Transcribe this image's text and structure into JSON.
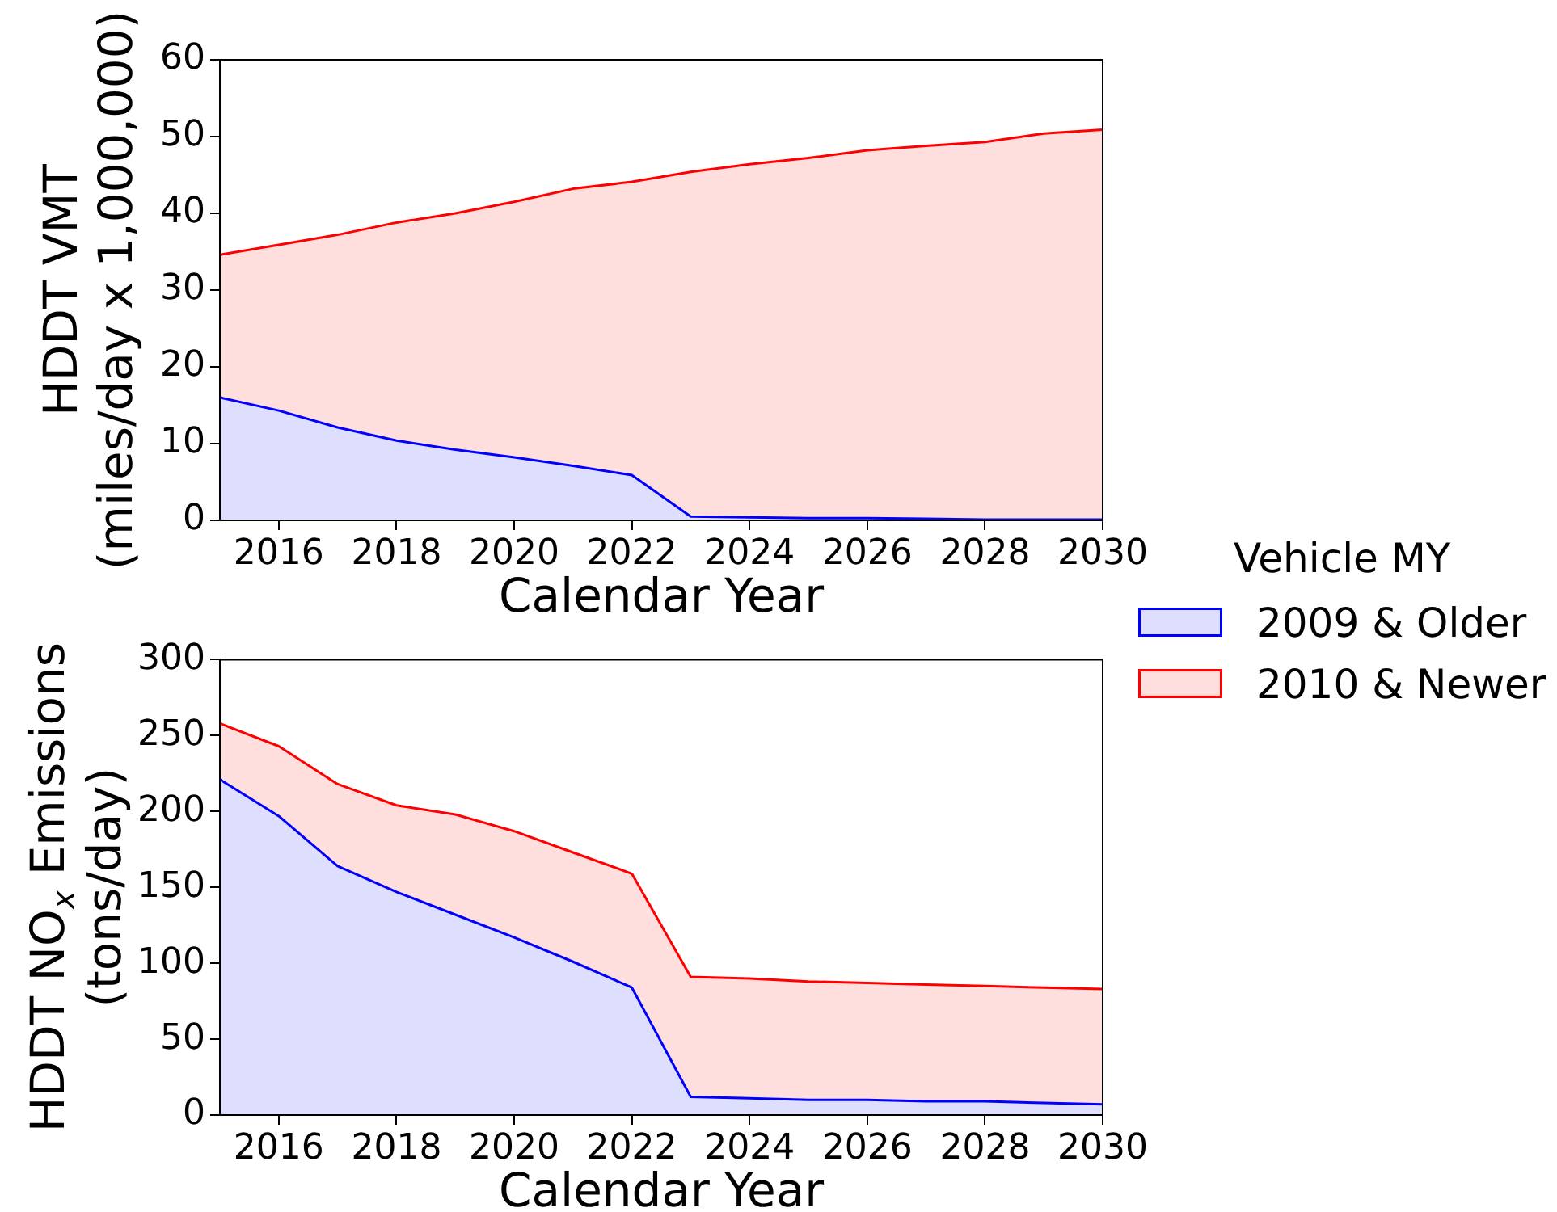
{
  "chart_data": [
    {
      "type": "area",
      "stacked": true,
      "xlabel": "Calendar Year",
      "ylabel": "HDDT VMT\n(miles/day x 1,000,000)",
      "legend": "right",
      "legend_title": "Vehicle MY",
      "x": [
        2015,
        2016,
        2017,
        2018,
        2019,
        2020,
        2021,
        2022,
        2023,
        2024,
        2025,
        2026,
        2027,
        2028,
        2029,
        2030
      ],
      "series": [
        {
          "name": "2009 & Older",
          "color": "#0000ff",
          "values": [
            16.0,
            14.3,
            12.1,
            10.4,
            9.2,
            8.2,
            7.1,
            5.9,
            0.5,
            0.4,
            0.3,
            0.3,
            0.2,
            0.1,
            0.1,
            0.1
          ]
        },
        {
          "name": "2010 & Newer",
          "color": "#ff0000",
          "values": [
            18.6,
            21.6,
            25.1,
            28.4,
            30.8,
            33.3,
            36.1,
            38.2,
            44.9,
            46.0,
            46.9,
            47.9,
            48.6,
            49.2,
            50.3,
            50.8
          ]
        }
      ],
      "xlim": [
        2015,
        2030
      ],
      "xticks": [
        2016,
        2018,
        2020,
        2022,
        2024,
        2026,
        2028,
        2030
      ],
      "ylim": [
        0,
        60
      ],
      "yticks": [
        0,
        10,
        20,
        30,
        40,
        50,
        60
      ]
    },
    {
      "type": "area",
      "stacked": true,
      "xlabel": "Calendar Year",
      "ylabel": "HDDT NO$_{x}$ Emissions\n(tons/day)",
      "x": [
        2015,
        2016,
        2017,
        2018,
        2019,
        2020,
        2021,
        2022,
        2023,
        2024,
        2025,
        2026,
        2027,
        2028,
        2029,
        2030
      ],
      "series": [
        {
          "color": "#0000ff",
          "values": [
            221,
            197,
            164,
            147,
            132,
            117,
            101,
            84,
            12,
            11,
            10,
            10,
            9,
            9,
            8,
            7
          ]
        },
        {
          "color": "#ff0000",
          "values": [
            37,
            46,
            54,
            57,
            66,
            70,
            72,
            75,
            79,
            79,
            78,
            77,
            77,
            76,
            76,
            76
          ]
        }
      ],
      "xlim": [
        2015,
        2030
      ],
      "xticks": [
        2016,
        2018,
        2020,
        2022,
        2024,
        2026,
        2028,
        2030
      ],
      "ylim": [
        0,
        300
      ],
      "yticks": [
        0,
        50,
        100,
        150,
        200,
        250,
        300
      ]
    }
  ]
}
